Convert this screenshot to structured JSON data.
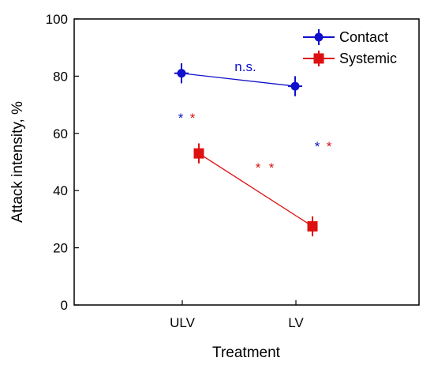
{
  "chart_data": {
    "type": "line",
    "xlabel": "Treatment",
    "ylabel": "Attack intensity, %",
    "categories": [
      "ULV",
      "LV"
    ],
    "ylim": [
      0,
      100
    ],
    "yticks": [
      "0",
      "20",
      "40",
      "60",
      "80",
      "100"
    ],
    "grid": false,
    "legend_position": "top-right",
    "series": [
      {
        "name": "Contact",
        "color": "#1010cc",
        "marker": "circle",
        "values": [
          81,
          76.5
        ],
        "errors": [
          3.5,
          3.5
        ]
      },
      {
        "name": "Systemic",
        "color": "#dd1111",
        "marker": "square",
        "values": [
          53,
          27.5
        ],
        "errors": [
          3.5,
          3.5
        ]
      }
    ],
    "annotations": {
      "ns": {
        "text": "n.s.",
        "color": "#1010cc"
      },
      "ulv_stars": [
        {
          "text": "*",
          "color": "#1010cc"
        },
        {
          "text": "*",
          "color": "#dd1111"
        }
      ],
      "lv_stars": [
        {
          "text": "*",
          "color": "#1010cc"
        },
        {
          "text": "*",
          "color": "#dd1111"
        }
      ],
      "between": [
        {
          "text": "*",
          "color": "#dd1111"
        },
        {
          "text": "*",
          "color": "#dd1111"
        }
      ]
    }
  }
}
